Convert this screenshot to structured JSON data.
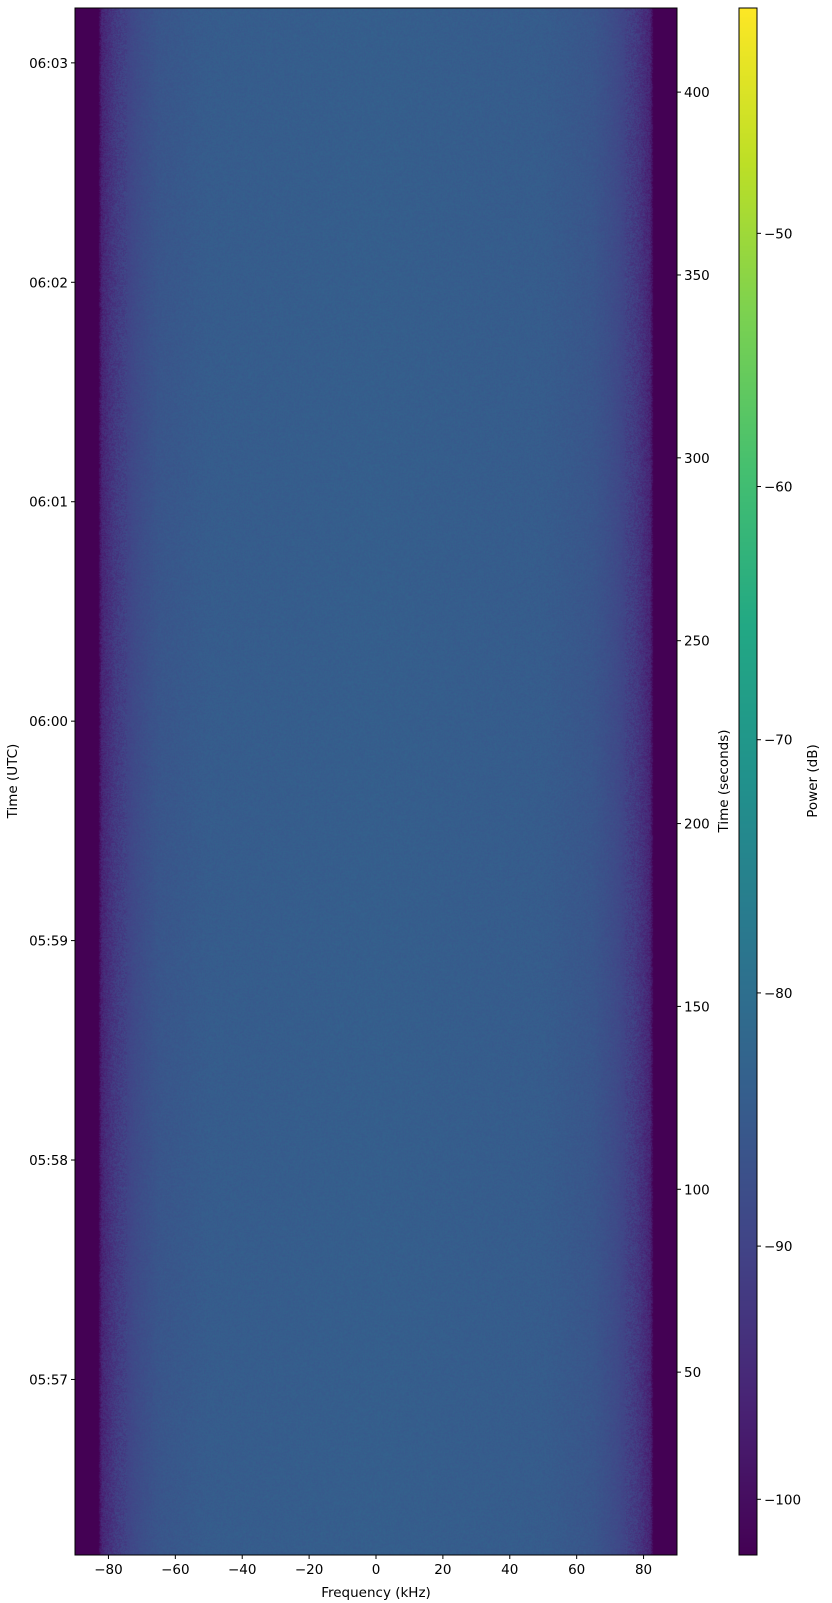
{
  "chart_data": {
    "type": "heatmap",
    "xlabel": "Frequency (kHz)",
    "ylabel_left": "Time (UTC)",
    "ylabel_right": "Time (seconds)",
    "colorbar_label": "Power (dB)",
    "xlim": [
      -90,
      90
    ],
    "ylim_seconds": [
      0,
      423
    ],
    "clim": [
      -102.2,
      -41.1
    ],
    "colormap": "viridis",
    "x_ticks": [
      -80,
      -60,
      -40,
      -20,
      0,
      20,
      40,
      60,
      80
    ],
    "x_tick_labels": [
      "−80",
      "−60",
      "−40",
      "−20",
      "0",
      "20",
      "40",
      "60",
      "80"
    ],
    "y_right_ticks": [
      50,
      100,
      150,
      200,
      250,
      300,
      350,
      400
    ],
    "y_right_tick_labels": [
      "50",
      "100",
      "150",
      "200",
      "250",
      "300",
      "350",
      "400"
    ],
    "y_left_ticks_seconds": [
      48,
      108,
      168,
      228,
      288,
      348,
      408
    ],
    "y_left_tick_labels": [
      "05:57",
      "05:58",
      "05:59",
      "06:00",
      "06:01",
      "06:02",
      "06:03"
    ],
    "colorbar_ticks": [
      -100,
      -90,
      -80,
      -70,
      -60,
      -50
    ],
    "colorbar_tick_labels": [
      "−100",
      "−90",
      "−80",
      "−70",
      "−60",
      "−50"
    ],
    "mean_power_profile": {
      "frequency_khz": [
        -90,
        -83,
        -82,
        -78,
        -72,
        -65,
        -50,
        0,
        50,
        65,
        72,
        78,
        82,
        83,
        90
      ],
      "power_db": [
        -102.2,
        -102.2,
        -96,
        -92,
        -88.5,
        -86,
        -84.5,
        -84,
        -84.5,
        -86,
        -88.5,
        -92,
        -96,
        -102.2,
        -102.2
      ]
    },
    "grid": false,
    "legend": "none"
  }
}
